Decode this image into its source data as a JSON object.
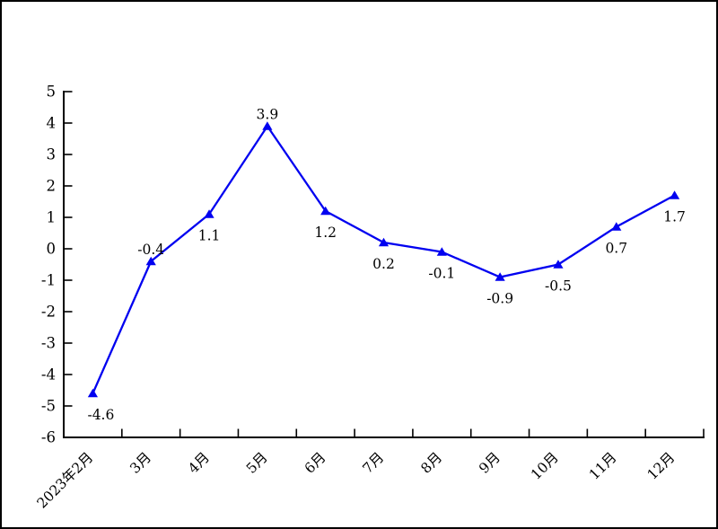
{
  "chart": {
    "title": ""
  },
  "chart_data": {
    "type": "line",
    "title": "",
    "xlabel": "",
    "ylabel": "",
    "categories": [
      "2023年2月",
      "3月",
      "4月",
      "5月",
      "6月",
      "7月",
      "8月",
      "9月",
      "10月",
      "11月",
      "12月"
    ],
    "series": [
      {
        "name": "",
        "values": [
          -4.6,
          -0.4,
          1.1,
          3.9,
          1.2,
          0.2,
          -0.1,
          -0.9,
          -0.5,
          0.7,
          1.7
        ]
      }
    ],
    "data_labels": [
      "-4.6",
      "-0.4",
      "1.1",
      "3.9",
      "1.2",
      "0.2",
      "-0.1",
      "-0.9",
      "-0.5",
      "0.7",
      "1.7"
    ],
    "data_label_side": [
      "below",
      "above",
      "below",
      "above",
      "below",
      "below",
      "below",
      "below",
      "below",
      "below",
      "below"
    ],
    "ylim": [
      -6,
      5
    ],
    "ytick_interval": 1,
    "yticks": [
      "5",
      "4",
      "3",
      "2",
      "1",
      "0",
      "-1",
      "-2",
      "-3",
      "-4",
      "-5",
      "-6"
    ],
    "grid": false,
    "legend_position": "none",
    "x_tick_label_rotation_deg": -45,
    "colors": {
      "line": "#0101F0",
      "marker": "#0101F0",
      "axis": "#000000",
      "text": "#000000",
      "background": "#FFFFFF"
    },
    "marker": "triangle-up"
  }
}
